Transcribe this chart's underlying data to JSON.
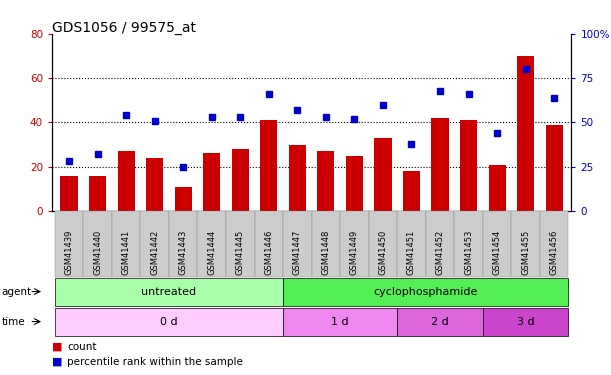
{
  "title": "GDS1056 / 99575_at",
  "samples": [
    "GSM41439",
    "GSM41440",
    "GSM41441",
    "GSM41442",
    "GSM41443",
    "GSM41444",
    "GSM41445",
    "GSM41446",
    "GSM41447",
    "GSM41448",
    "GSM41449",
    "GSM41450",
    "GSM41451",
    "GSM41452",
    "GSM41453",
    "GSM41454",
    "GSM41455",
    "GSM41456"
  ],
  "counts": [
    16,
    16,
    27,
    24,
    11,
    26,
    28,
    41,
    30,
    27,
    25,
    33,
    18,
    42,
    41,
    21,
    70,
    39
  ],
  "percentiles": [
    28,
    32,
    54,
    51,
    25,
    53,
    53,
    66,
    57,
    53,
    52,
    60,
    38,
    68,
    66,
    44,
    80,
    64
  ],
  "bar_color": "#cc0000",
  "dot_color": "#0000cc",
  "ylim_left": [
    0,
    80
  ],
  "ylim_right": [
    0,
    100
  ],
  "yticks_left": [
    0,
    20,
    40,
    60,
    80
  ],
  "yticks_right": [
    0,
    25,
    50,
    75,
    100
  ],
  "ytick_labels_right": [
    "0",
    "25",
    "50",
    "75",
    "100%"
  ],
  "agent_groups": [
    {
      "label": "untreated",
      "start": 0,
      "end": 8,
      "color": "#aaffaa"
    },
    {
      "label": "cyclophosphamide",
      "start": 8,
      "end": 18,
      "color": "#55ee55"
    }
  ],
  "time_groups": [
    {
      "label": "0 d",
      "start": 0,
      "end": 8,
      "color": "#ffccff"
    },
    {
      "label": "1 d",
      "start": 8,
      "end": 12,
      "color": "#ee88ee"
    },
    {
      "label": "2 d",
      "start": 12,
      "end": 15,
      "color": "#dd66dd"
    },
    {
      "label": "3 d",
      "start": 15,
      "end": 18,
      "color": "#cc44cc"
    }
  ],
  "legend_items": [
    {
      "label": "count",
      "color": "#cc0000"
    },
    {
      "label": "percentile rank within the sample",
      "color": "#0000cc"
    }
  ],
  "tick_label_color_left": "#cc0000",
  "tick_label_color_right": "#0000cc",
  "title_fontsize": 10,
  "axis_fontsize": 7.5,
  "bar_width": 0.6
}
